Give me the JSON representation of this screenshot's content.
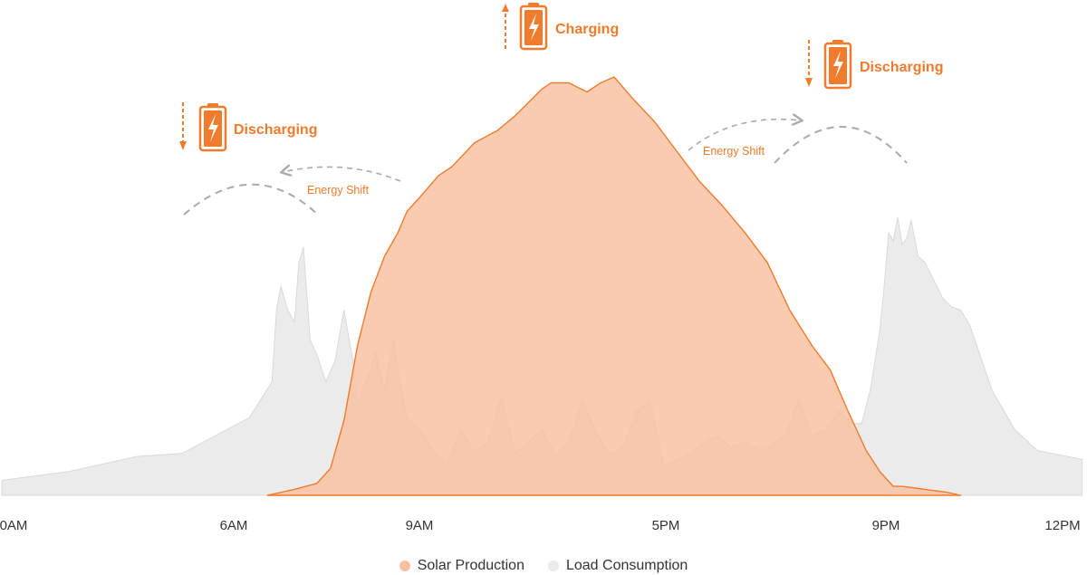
{
  "chart_data": {
    "type": "area",
    "xlabel": "",
    "ylabel": "",
    "x_ticks": [
      "0AM",
      "6AM",
      "9AM",
      "5PM",
      "9PM",
      "12PM"
    ],
    "grid": false,
    "legend_position": "bottom-center",
    "series": [
      {
        "name": "Load Consumption",
        "color": "#ebebeb",
        "stroke": "#d9d9d9",
        "x": [
          0,
          1.5,
          3,
          4,
          5,
          5.5,
          6,
          6.1,
          6.2,
          6.35,
          6.5,
          6.6,
          6.7,
          6.85,
          7.0,
          7.2,
          7.4,
          7.6,
          7.8,
          7.9,
          8.0,
          8.2,
          8.3,
          8.5,
          8.7,
          8.8,
          9.0,
          9.3,
          9.6,
          9.9,
          10.2,
          10.5,
          10.8,
          11.1,
          11.4,
          11.7,
          12.0,
          12.3,
          12.6,
          12.9,
          13.2,
          13.5,
          13.8,
          14.1,
          14.4,
          14.7,
          15.0,
          15.3,
          15.6,
          15.9,
          16.2,
          16.5,
          16.8,
          17.1,
          17.4,
          17.7,
          18.0,
          18.3,
          18.6,
          18.9,
          19.1,
          19.3,
          19.5,
          19.6,
          19.7,
          19.8,
          19.9,
          20.0,
          20.1,
          20.2,
          20.35,
          20.5,
          20.7,
          20.9,
          21.1,
          21.3,
          21.5,
          22.0,
          22.5,
          23.0,
          24.0
        ],
        "values": [
          0.05,
          0.08,
          0.13,
          0.14,
          0.22,
          0.26,
          0.38,
          0.62,
          0.7,
          0.62,
          0.58,
          0.78,
          0.83,
          0.52,
          0.47,
          0.38,
          0.45,
          0.62,
          0.45,
          0.3,
          0.35,
          0.42,
          0.48,
          0.35,
          0.52,
          0.42,
          0.26,
          0.22,
          0.14,
          0.11,
          0.22,
          0.14,
          0.18,
          0.33,
          0.14,
          0.18,
          0.22,
          0.13,
          0.18,
          0.32,
          0.21,
          0.14,
          0.16,
          0.28,
          0.32,
          0.1,
          0.12,
          0.14,
          0.18,
          0.2,
          0.16,
          0.18,
          0.15,
          0.17,
          0.2,
          0.32,
          0.2,
          0.22,
          0.28,
          0.24,
          0.24,
          0.36,
          0.55,
          0.7,
          0.88,
          0.85,
          0.93,
          0.84,
          0.86,
          0.92,
          0.8,
          0.78,
          0.72,
          0.66,
          0.63,
          0.62,
          0.57,
          0.35,
          0.22,
          0.15,
          0.12
        ]
      },
      {
        "name": "Solar Production",
        "color": "#f8c0a0",
        "stroke": "#f07b2c",
        "x": [
          5.9,
          6.5,
          7.0,
          7.3,
          7.6,
          7.9,
          8.2,
          8.5,
          8.8,
          9.0,
          9.3,
          9.7,
          10.0,
          10.5,
          11.0,
          11.4,
          11.8,
          12.0,
          12.2,
          12.6,
          13.0,
          13.3,
          13.6,
          14.0,
          14.5,
          15.0,
          15.5,
          16.0,
          16.5,
          17.0,
          17.5,
          18.0,
          18.4,
          18.8,
          19.2,
          19.5,
          19.8,
          20.0,
          20.5,
          21.0,
          21.3
        ],
        "values": [
          0.0,
          0.02,
          0.04,
          0.09,
          0.25,
          0.5,
          0.68,
          0.8,
          0.88,
          0.95,
          1.0,
          1.07,
          1.1,
          1.18,
          1.22,
          1.27,
          1.33,
          1.36,
          1.38,
          1.38,
          1.35,
          1.38,
          1.4,
          1.33,
          1.25,
          1.15,
          1.05,
          0.97,
          0.88,
          0.78,
          0.62,
          0.5,
          0.42,
          0.28,
          0.15,
          0.08,
          0.03,
          0.03,
          0.02,
          0.01,
          0.0
        ]
      }
    ]
  },
  "annotations": {
    "charging_label": "Charging",
    "discharging_left_label": "Discharging",
    "discharging_right_label": "Discharging",
    "shift_left_label": "Energy Shift",
    "shift_right_label": "Energy Shift"
  },
  "legend": {
    "items": [
      {
        "label": "Solar Production",
        "color": "#f8c0a0"
      },
      {
        "label": "Load Consumption",
        "color": "#ebebeb"
      }
    ]
  }
}
